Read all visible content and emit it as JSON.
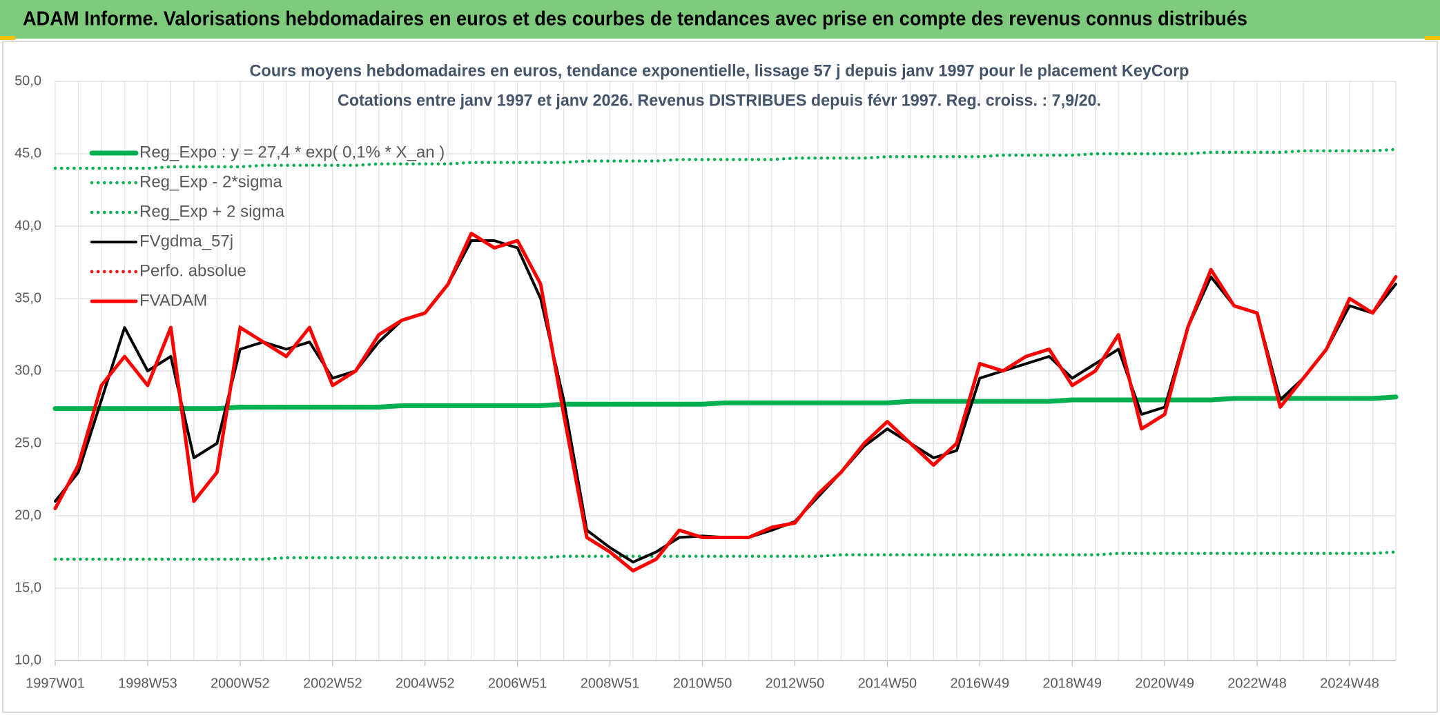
{
  "header": {
    "title": "ADAM Informe. Valorisations hebdomadaires en euros et des courbes de tendances avec prise en compte des revenus connus distribués"
  },
  "chart_data": {
    "type": "line",
    "title": "Cours moyens hebdomadaires en euros, tendance exponentielle, lissage 57 j depuis janv 1997 pour le placement KeyCorp",
    "subtitle": "Cotations entre janv 1997 et janv 2026. Revenus DISTRIBUES depuis févr 1997. Reg. croiss. : 7,9/20.",
    "categories": [
      "1997W01",
      null,
      null,
      null,
      "1998W53",
      null,
      null,
      null,
      "2000W52",
      null,
      null,
      null,
      "2002W52",
      null,
      null,
      null,
      "2004W52",
      null,
      null,
      null,
      "2006W51",
      null,
      null,
      null,
      "2008W51",
      null,
      null,
      null,
      "2010W50",
      null,
      null,
      null,
      "2012W50",
      null,
      null,
      null,
      "2014W50",
      null,
      null,
      null,
      "2016W49",
      null,
      null,
      null,
      "2018W49",
      null,
      null,
      null,
      "2020W49",
      null,
      null,
      null,
      "2022W48",
      null,
      null,
      null,
      "2024W48",
      null,
      null
    ],
    "ylim": [
      10,
      50
    ],
    "yticks": [
      {
        "value": 10,
        "label": "10,0"
      },
      {
        "value": 15,
        "label": "15,0"
      },
      {
        "value": 20,
        "label": "20,0"
      },
      {
        "value": 25,
        "label": "25,0"
      },
      {
        "value": 30,
        "label": "30,0"
      },
      {
        "value": 35,
        "label": "35,0"
      },
      {
        "value": 40,
        "label": "40,0"
      },
      {
        "value": 45,
        "label": "45,0"
      },
      {
        "value": 50,
        "label": "50,0"
      }
    ],
    "grid": true,
    "legend": "top-left",
    "series": [
      {
        "name": "Reg_Expo : y = 27,4 * exp( 0,1% *  X_an )",
        "color": "#00b050",
        "style": "solid",
        "values": [
          27.4,
          27.4,
          27.4,
          27.4,
          27.4,
          27.4,
          27.4,
          27.4,
          27.5,
          27.5,
          27.5,
          27.5,
          27.5,
          27.5,
          27.5,
          27.6,
          27.6,
          27.6,
          27.6,
          27.6,
          27.6,
          27.6,
          27.7,
          27.7,
          27.7,
          27.7,
          27.7,
          27.7,
          27.7,
          27.8,
          27.8,
          27.8,
          27.8,
          27.8,
          27.8,
          27.8,
          27.8,
          27.9,
          27.9,
          27.9,
          27.9,
          27.9,
          27.9,
          27.9,
          28.0,
          28.0,
          28.0,
          28.0,
          28.0,
          28.0,
          28.0,
          28.1,
          28.1,
          28.1,
          28.1,
          28.1,
          28.1,
          28.1,
          28.2
        ]
      },
      {
        "name": "Reg_Exp - 2*sigma",
        "color": "#00b050",
        "style": "dotted",
        "values": [
          17.0,
          17.0,
          17.0,
          17.0,
          17.0,
          17.0,
          17.0,
          17.0,
          17.0,
          17.0,
          17.1,
          17.1,
          17.1,
          17.1,
          17.1,
          17.1,
          17.1,
          17.1,
          17.1,
          17.1,
          17.1,
          17.1,
          17.2,
          17.2,
          17.2,
          17.2,
          17.2,
          17.2,
          17.2,
          17.2,
          17.2,
          17.2,
          17.2,
          17.2,
          17.3,
          17.3,
          17.3,
          17.3,
          17.3,
          17.3,
          17.3,
          17.3,
          17.3,
          17.3,
          17.3,
          17.3,
          17.4,
          17.4,
          17.4,
          17.4,
          17.4,
          17.4,
          17.4,
          17.4,
          17.4,
          17.4,
          17.4,
          17.4,
          17.5
        ]
      },
      {
        "name": "Reg_Exp + 2 sigma",
        "color": "#00b050",
        "style": "dotted",
        "values": [
          44.0,
          44.0,
          44.0,
          44.0,
          44.0,
          44.1,
          44.1,
          44.1,
          44.1,
          44.2,
          44.2,
          44.2,
          44.2,
          44.2,
          44.3,
          44.3,
          44.3,
          44.3,
          44.4,
          44.4,
          44.4,
          44.4,
          44.4,
          44.5,
          44.5,
          44.5,
          44.5,
          44.6,
          44.6,
          44.6,
          44.6,
          44.6,
          44.7,
          44.7,
          44.7,
          44.7,
          44.8,
          44.8,
          44.8,
          44.8,
          44.8,
          44.9,
          44.9,
          44.9,
          44.9,
          45.0,
          45.0,
          45.0,
          45.0,
          45.0,
          45.1,
          45.1,
          45.1,
          45.1,
          45.2,
          45.2,
          45.2,
          45.2,
          45.3
        ]
      },
      {
        "name": "FVgdma_57j",
        "color": "#000000",
        "style": "solid",
        "values": [
          21,
          23,
          28,
          33,
          30,
          31,
          24,
          25,
          31.5,
          32,
          31.5,
          32,
          29.5,
          30,
          32,
          33.5,
          34,
          36,
          39,
          39,
          38.5,
          35,
          28,
          19,
          17.8,
          16.8,
          17.5,
          18.5,
          18.6,
          18.5,
          18.5,
          19,
          19.6,
          21.3,
          23,
          24.8,
          26,
          25,
          24,
          24.5,
          29.5,
          30,
          30.5,
          31,
          29.5,
          30.5,
          31.5,
          27,
          27.5,
          33,
          36.5,
          34.5,
          34,
          28,
          29.5,
          31.5,
          34.5,
          34,
          36
        ]
      },
      {
        "name": "Perfo. absolue",
        "color": "#ff0000",
        "style": "dotted",
        "values": [
          20.5,
          23.5,
          29,
          31,
          29,
          33,
          21,
          23,
          33,
          32,
          31,
          33,
          29,
          30,
          32.5,
          33.5,
          34,
          36,
          39.5,
          38.5,
          39,
          36,
          27,
          18.5,
          17.5,
          16.2,
          17,
          19,
          18.5,
          18.5,
          18.5,
          19.2,
          19.5,
          21.5,
          23,
          25,
          26.5,
          25,
          23.5,
          25,
          30.5,
          30,
          31,
          31.5,
          29,
          30,
          32.5,
          26,
          27,
          33,
          37,
          34.5,
          34,
          27.5,
          29.5,
          31.5,
          35,
          34,
          36.5
        ]
      },
      {
        "name": "FVADAM",
        "color": "#ff0000",
        "style": "solid",
        "values": [
          20.5,
          23.5,
          29,
          31,
          29,
          33,
          21,
          23,
          33,
          32,
          31,
          33,
          29,
          30,
          32.5,
          33.5,
          34,
          36,
          39.5,
          38.5,
          39,
          36,
          27,
          18.5,
          17.5,
          16.2,
          17,
          19,
          18.5,
          18.5,
          18.5,
          19.2,
          19.5,
          21.5,
          23,
          25,
          26.5,
          25,
          23.5,
          25,
          30.5,
          30,
          31,
          31.5,
          29,
          30,
          32.5,
          26,
          27,
          33,
          37,
          34.5,
          34,
          27.5,
          29.5,
          31.5,
          35,
          34,
          36.5
        ]
      }
    ]
  }
}
